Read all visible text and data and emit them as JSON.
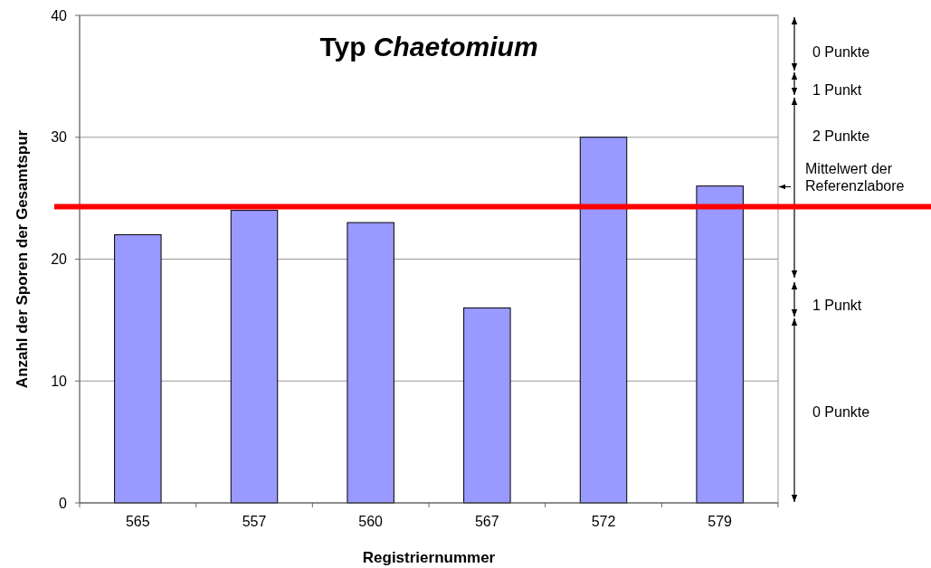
{
  "chart_data": {
    "type": "bar",
    "title": "Typ Chaetomium",
    "xlabel": "Registriernummer",
    "ylabel": "Anzahl der Sporen der Gesamtspur",
    "categories": [
      "565",
      "557",
      "560",
      "567",
      "572",
      "579"
    ],
    "values": [
      22,
      24,
      23,
      16,
      30,
      26
    ],
    "color": "#9999ff",
    "ylim": [
      0,
      40
    ],
    "yticks": [
      0,
      10,
      20,
      30,
      40
    ],
    "grid": "y",
    "ref_lines": [
      {
        "axis": "y",
        "value": 24.3,
        "label": "Mittelwert der Referenzlabore",
        "color": "#ff0000"
      }
    ],
    "annotations": [
      "0 Punkte",
      "1 Punkt",
      "2 Punkte",
      "1 Punkt",
      "0 Punkte"
    ]
  }
}
